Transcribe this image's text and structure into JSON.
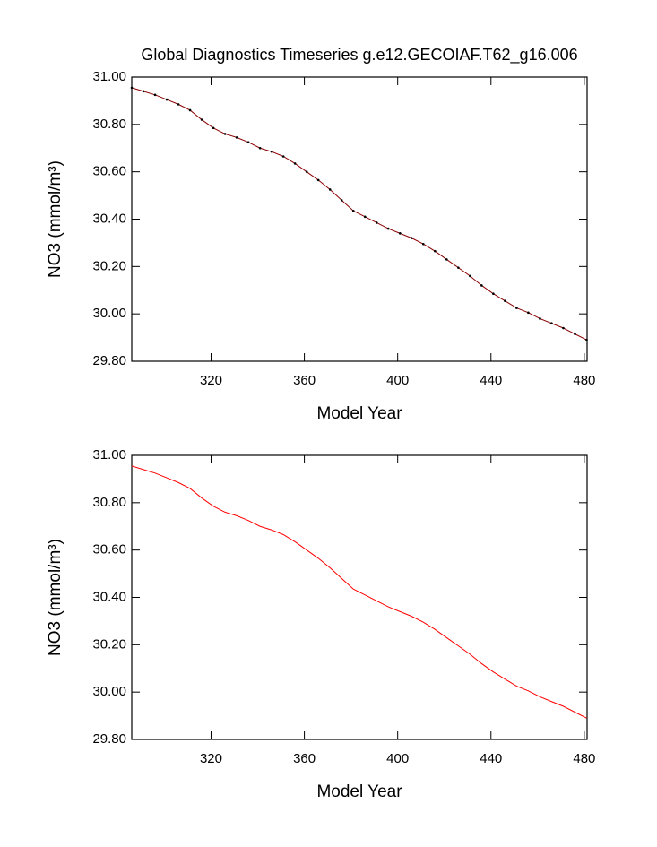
{
  "chart_data": [
    {
      "type": "line",
      "title": "Global Diagnostics Timeseries g.e12.GECOIAF.T62_g16.006",
      "xlabel": "Model Year",
      "ylabel": "NO3 (mmol/m³)",
      "x": [
        286,
        291,
        296,
        301,
        306,
        311,
        316,
        321,
        326,
        331,
        336,
        341,
        346,
        351,
        356,
        361,
        366,
        371,
        376,
        381,
        386,
        391,
        396,
        401,
        406,
        411,
        416,
        421,
        426,
        431,
        436,
        441,
        446,
        451,
        456,
        461,
        466,
        471,
        476,
        481
      ],
      "series": [
        {
          "color": "#8b0000",
          "markers": true,
          "values": [
            30.955,
            30.94,
            30.925,
            30.905,
            30.885,
            30.86,
            30.82,
            30.785,
            30.76,
            30.745,
            30.725,
            30.7,
            30.685,
            30.665,
            30.635,
            30.6,
            30.565,
            30.525,
            30.48,
            30.435,
            30.41,
            30.385,
            30.36,
            30.34,
            30.32,
            30.295,
            30.265,
            30.23,
            30.195,
            30.16,
            30.12,
            30.085,
            30.055,
            30.025,
            30.005,
            29.98,
            29.96,
            29.94,
            29.915,
            29.89
          ]
        }
      ],
      "xlim": [
        286,
        481.2
      ],
      "xticks": [
        320,
        360,
        400,
        440,
        480
      ],
      "ylim": [
        29.8,
        31.0
      ],
      "yticks": [
        {
          "value": 29.8,
          "label": "29.80"
        },
        {
          "value": 30.0,
          "label": "30.00"
        },
        {
          "value": 30.2,
          "label": "30.20"
        },
        {
          "value": 30.4,
          "label": "30.40"
        },
        {
          "value": 30.6,
          "label": "30.60"
        },
        {
          "value": 30.8,
          "label": "30.80"
        },
        {
          "value": 31.0,
          "label": "31.00"
        }
      ]
    },
    {
      "type": "line",
      "xlabel": "Model Year",
      "ylabel": "NO3 (mmol/m³)",
      "x": [
        286,
        291,
        296,
        301,
        306,
        311,
        316,
        321,
        326,
        331,
        336,
        341,
        346,
        351,
        356,
        361,
        366,
        371,
        376,
        381,
        386,
        391,
        396,
        401,
        406,
        411,
        416,
        421,
        426,
        431,
        436,
        441,
        446,
        451,
        456,
        461,
        466,
        471,
        476,
        481
      ],
      "series": [
        {
          "color": "#ff0000",
          "markers": false,
          "values": [
            30.955,
            30.94,
            30.925,
            30.905,
            30.885,
            30.86,
            30.82,
            30.785,
            30.76,
            30.745,
            30.725,
            30.7,
            30.685,
            30.665,
            30.635,
            30.6,
            30.565,
            30.525,
            30.48,
            30.435,
            30.41,
            30.385,
            30.36,
            30.34,
            30.32,
            30.295,
            30.265,
            30.23,
            30.195,
            30.16,
            30.12,
            30.085,
            30.055,
            30.025,
            30.005,
            29.98,
            29.96,
            29.94,
            29.915,
            29.89
          ]
        }
      ],
      "xlim": [
        286,
        481.2
      ],
      "xticks": [
        320,
        360,
        400,
        440,
        480
      ],
      "ylim": [
        29.8,
        31.0
      ],
      "yticks": [
        {
          "value": 29.8,
          "label": "29.80"
        },
        {
          "value": 30.0,
          "label": "30.00"
        },
        {
          "value": 30.2,
          "label": "30.20"
        },
        {
          "value": 30.4,
          "label": "30.40"
        },
        {
          "value": 30.6,
          "label": "30.60"
        },
        {
          "value": 30.8,
          "label": "30.80"
        },
        {
          "value": 31.0,
          "label": "31.00"
        }
      ]
    }
  ]
}
